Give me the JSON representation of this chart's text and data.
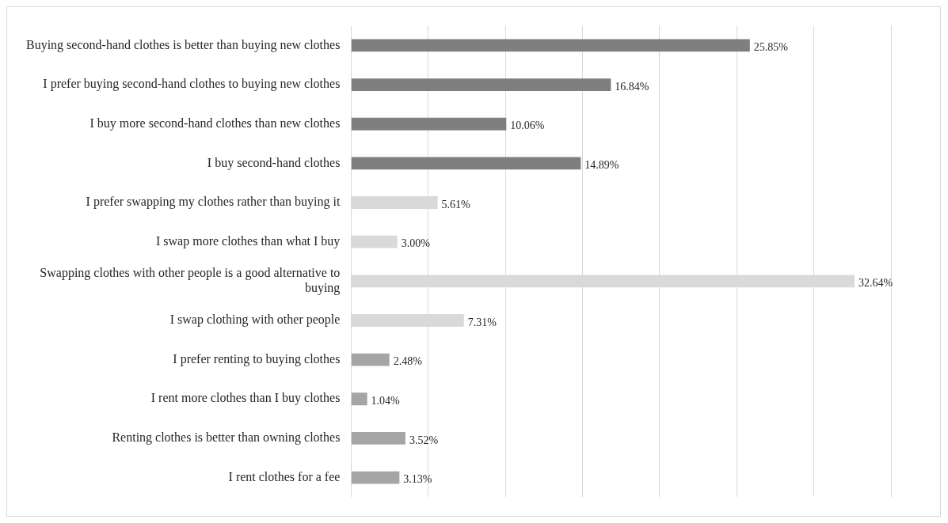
{
  "chart_data": {
    "type": "bar",
    "orientation": "horizontal",
    "categories": [
      "Buying second-hand clothes is better than buying new clothes",
      "I prefer buying second-hand clothes to buying new clothes",
      "I buy more second-hand clothes than new clothes",
      "I buy second-hand clothes",
      "I prefer swapping my clothes rather than buying it",
      "I swap more clothes than what I buy",
      "Swapping clothes with other people is a good alternative to buying",
      "I swap clothing with other people",
      "I prefer renting to buying clothes",
      "I rent more clothes than I buy clothes",
      "Renting clothes is better than owning clothes",
      "I rent clothes for a fee"
    ],
    "values": [
      25.85,
      16.84,
      10.06,
      14.89,
      5.61,
      3.0,
      32.64,
      7.31,
      2.48,
      1.04,
      3.52,
      3.13
    ],
    "colors": [
      "#7f7f7f",
      "#7f7f7f",
      "#7f7f7f",
      "#7f7f7f",
      "#d9d9d9",
      "#d9d9d9",
      "#d9d9d9",
      "#d9d9d9",
      "#a5a5a5",
      "#a5a5a5",
      "#a5a5a5",
      "#a5a5a5"
    ],
    "value_labels": [
      "25.85%",
      "16.84%",
      "10.06%",
      "14.89%",
      "5.61%",
      "3.00%",
      "32.64%",
      "7.31%",
      "2.48%",
      "1.04%",
      "3.52%",
      "3.13%"
    ],
    "xlim": [
      0,
      35
    ],
    "xticks": [
      {
        "value": 0,
        "label": null
      },
      {
        "value": 5,
        "label": null
      },
      {
        "value": 10,
        "label": null
      },
      {
        "value": 15,
        "label": null
      },
      {
        "value": 20,
        "label": null
      },
      {
        "value": 25,
        "label": null
      },
      {
        "value": 30,
        "label": null
      },
      {
        "value": 35,
        "label": null
      }
    ],
    "grid": "x",
    "tick_labels": "y",
    "legend": false
  }
}
